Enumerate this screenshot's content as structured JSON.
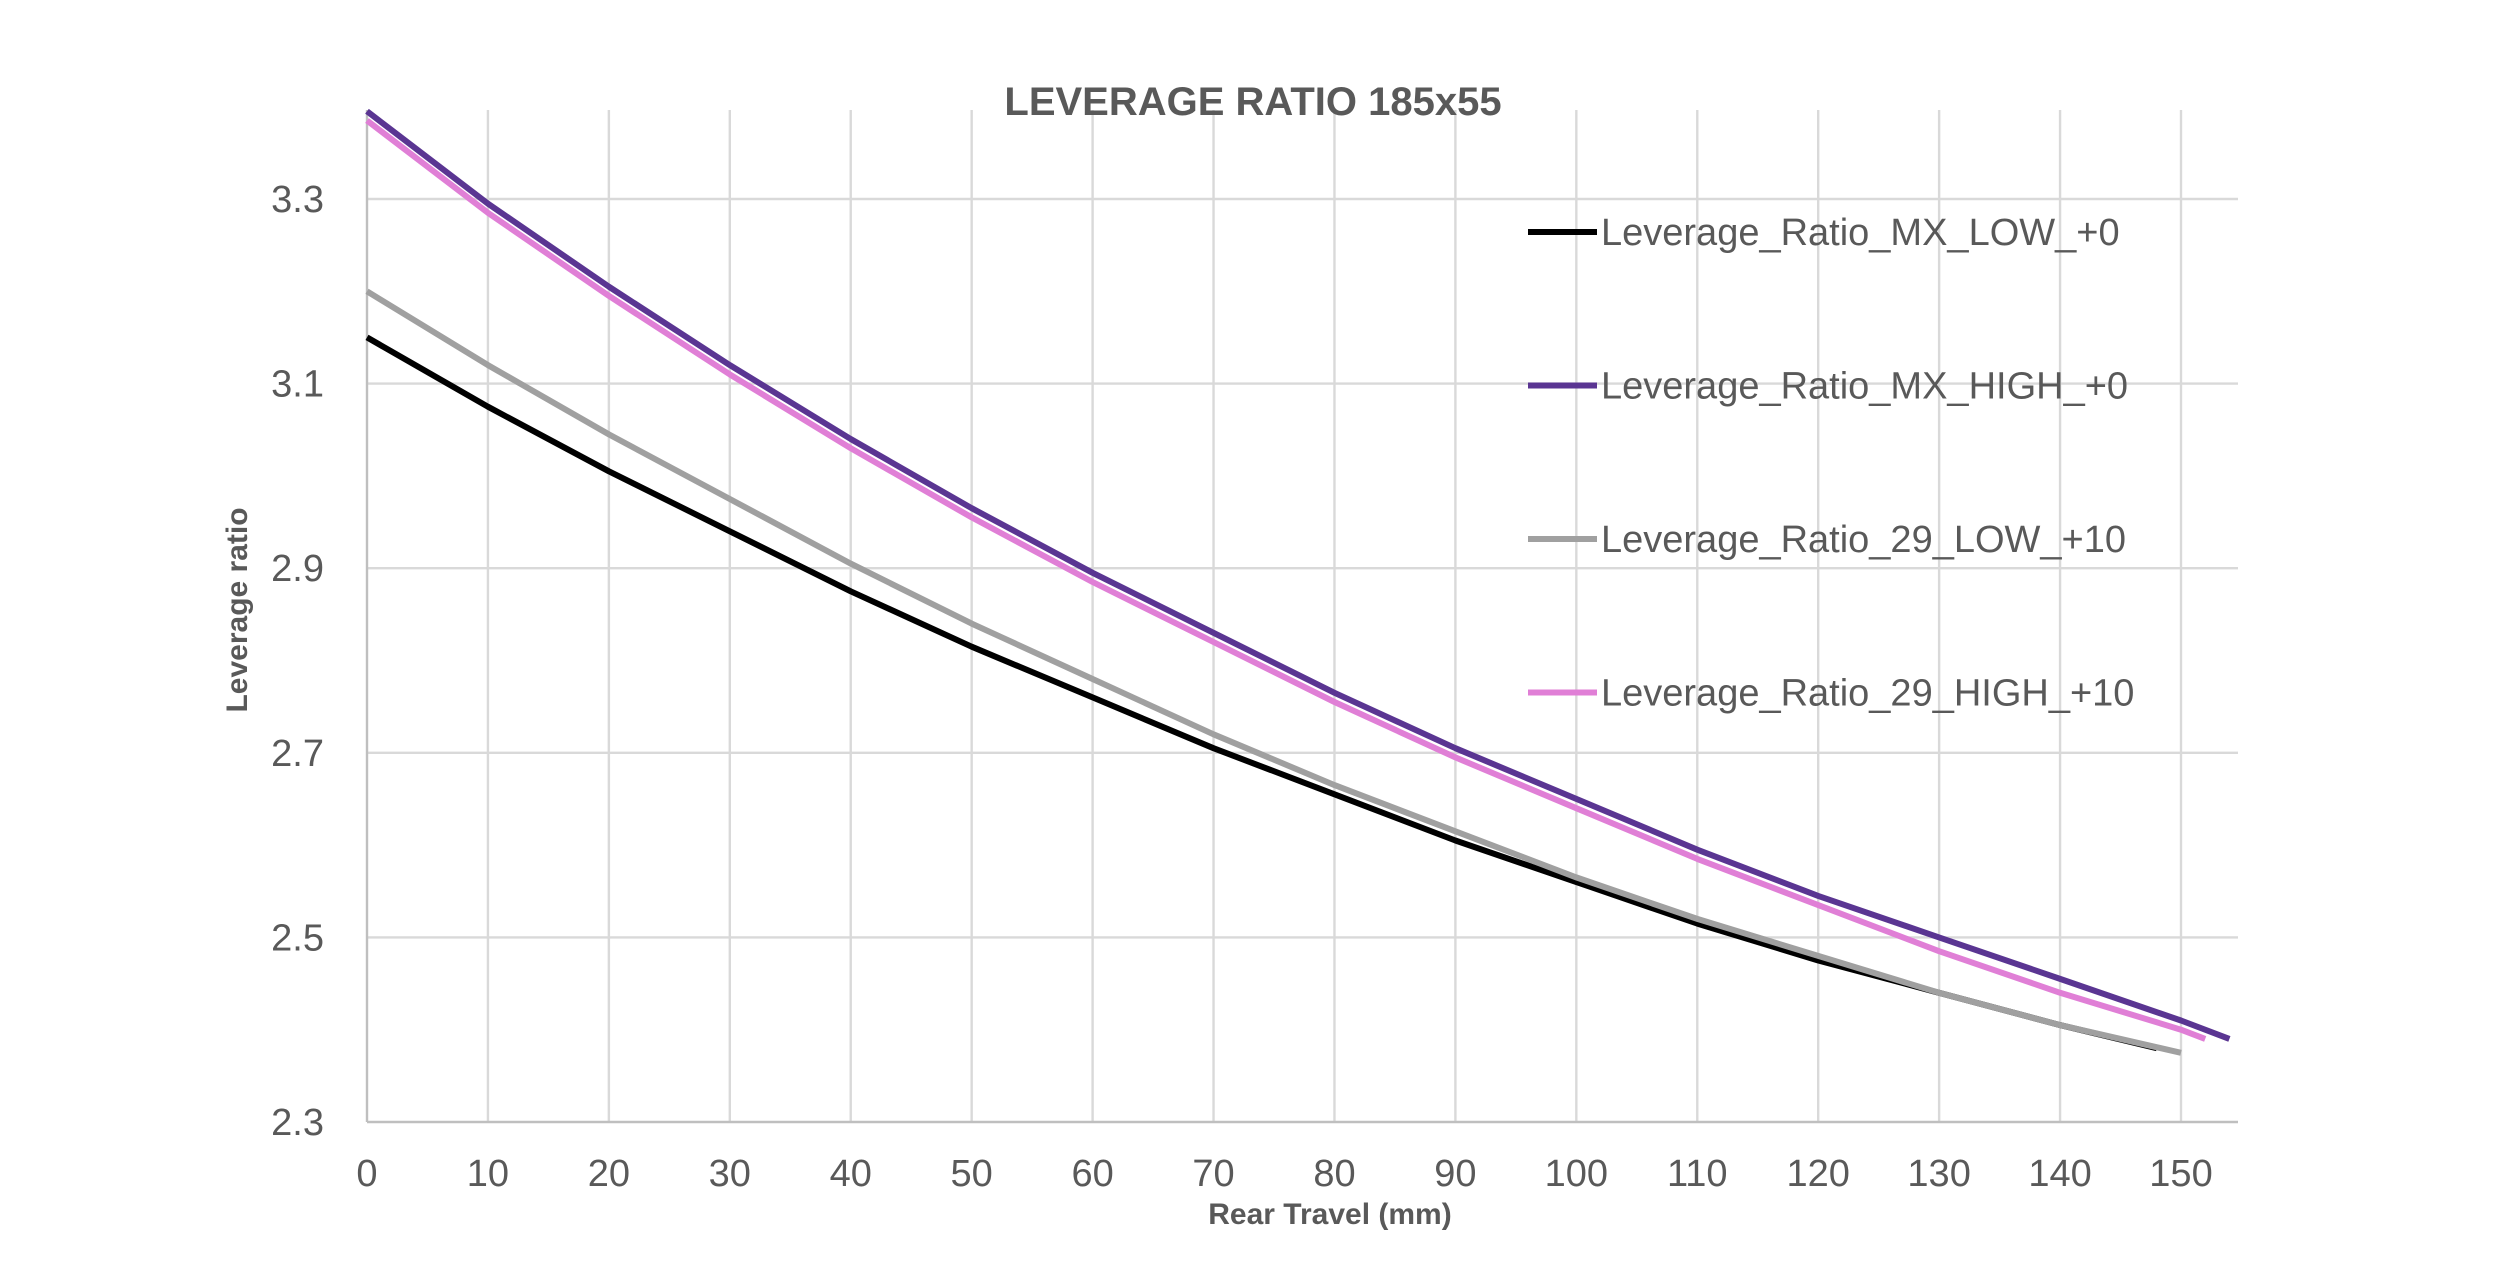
{
  "chart_data": {
    "type": "line",
    "title": "LEVERAGE RATIO 185x55",
    "xlabel": "Rear Travel (mm)",
    "ylabel": "Leverage ratio",
    "xlim": [
      0,
      155
    ],
    "ylim": [
      2.3,
      3.4
    ],
    "xticks": [
      0,
      10,
      20,
      30,
      40,
      50,
      60,
      70,
      80,
      90,
      100,
      110,
      120,
      130,
      140,
      150
    ],
    "yticks": [
      2.3,
      2.5,
      2.7,
      2.9,
      3.1,
      3.3
    ],
    "ytick_labels": [
      "2.3",
      "2.5",
      "2.7",
      "2.9",
      "3.1",
      "3.3"
    ],
    "grid": true,
    "legend_position": "top-right",
    "series": [
      {
        "name": "Leverage_Ratio_MX_LOW_+0",
        "color": "#000000",
        "x": [
          0,
          10,
          20,
          30,
          40,
          50,
          60,
          70,
          80,
          90,
          100,
          110,
          120,
          130,
          140,
          148
        ],
        "y": [
          3.15,
          3.075,
          3.005,
          2.94,
          2.875,
          2.815,
          2.76,
          2.705,
          2.655,
          2.605,
          2.56,
          2.515,
          2.475,
          2.44,
          2.405,
          2.38
        ]
      },
      {
        "name": "Leverage_Ratio_MX_HIGH_+0",
        "color": "#5a3592",
        "x": [
          0,
          10,
          20,
          30,
          40,
          50,
          60,
          70,
          80,
          90,
          100,
          110,
          120,
          130,
          140,
          150,
          154
        ],
        "y": [
          3.395,
          3.295,
          3.205,
          3.12,
          3.04,
          2.965,
          2.895,
          2.83,
          2.765,
          2.705,
          2.65,
          2.595,
          2.545,
          2.5,
          2.455,
          2.41,
          2.39
        ]
      },
      {
        "name": "Leverage_Ratio_29_LOW_+10",
        "color": "#a0a0a0",
        "x": [
          0,
          10,
          20,
          30,
          40,
          50,
          60,
          70,
          80,
          90,
          100,
          110,
          120,
          130,
          140,
          150
        ],
        "y": [
          3.2,
          3.12,
          3.045,
          2.975,
          2.905,
          2.84,
          2.78,
          2.72,
          2.665,
          2.615,
          2.565,
          2.52,
          2.48,
          2.44,
          2.405,
          2.375
        ]
      },
      {
        "name": "Leverage_Ratio_29_HIGH_+10",
        "color": "#e07fd6",
        "x": [
          0,
          10,
          20,
          30,
          40,
          50,
          60,
          70,
          80,
          90,
          100,
          110,
          120,
          130,
          140,
          150,
          152
        ],
        "y": [
          3.385,
          3.285,
          3.195,
          3.11,
          3.03,
          2.955,
          2.885,
          2.82,
          2.755,
          2.695,
          2.64,
          2.585,
          2.535,
          2.485,
          2.44,
          2.4,
          2.39
        ]
      }
    ]
  }
}
